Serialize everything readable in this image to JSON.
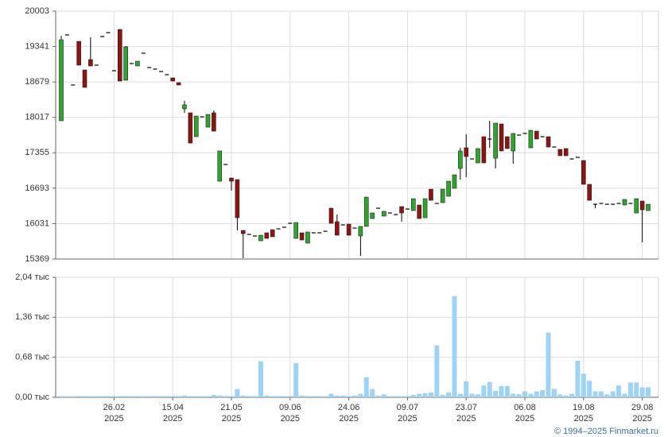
{
  "chart_data": [
    {
      "type": "candlestick",
      "up_color": "#2fa52f",
      "down_color": "#8e1414",
      "ylim": [
        15369,
        20003
      ],
      "yticks": [
        20003,
        19341,
        18679,
        18017,
        17355,
        16693,
        16031,
        15369
      ],
      "grid": true,
      "open": [
        17953,
        19558,
        18622,
        19438,
        18904,
        19097,
        18993,
        19528,
        19602,
        18889,
        19661,
        18711,
        19023,
        18978,
        19216,
        18948,
        18919,
        18874,
        18815,
        18755,
        18666,
        18176,
        18102,
        17656,
        18027,
        17834,
        18102,
        16824,
        17136,
        16884,
        16854,
        15904,
        15829,
        15800,
        15710,
        15859,
        15918,
        15933,
        15963,
        16037,
        15755,
        15859,
        15666,
        15859,
        15859,
        15888,
        16319,
        16066,
        16007,
        16022,
        15948,
        15800,
        15978,
        16126,
        16319,
        16171,
        16230,
        16200,
        16349,
        16304,
        16274,
        16379,
        16141,
        16675,
        16408,
        16423,
        16542,
        16691,
        17062,
        17448,
        17240,
        17166,
        17656,
        17612,
        17255,
        17894,
        17656,
        17389,
        17686,
        17716,
        17448,
        17760,
        17656,
        17656,
        17463,
        17419,
        17434,
        17240,
        17270,
        17211,
        16765,
        16393,
        16408,
        16393,
        16393,
        16408,
        16379,
        16408,
        16230,
        16453,
        16274
      ],
      "high": [
        19543,
        19558,
        18622,
        19438,
        18904,
        19513,
        18993,
        19528,
        19602,
        18889,
        19661,
        19350,
        19023,
        19067,
        19216,
        18948,
        18919,
        18874,
        18815,
        18755,
        18666,
        18325,
        18102,
        18042,
        18027,
        18072,
        18146,
        17389,
        17136,
        16884,
        16854,
        15904,
        15829,
        15800,
        15814,
        15859,
        15918,
        15933,
        15963,
        16037,
        16051,
        15859,
        15874,
        15859,
        15859,
        15888,
        16319,
        16200,
        16007,
        16022,
        15948,
        15978,
        16527,
        16230,
        16319,
        16260,
        16230,
        16200,
        16349,
        16304,
        16497,
        16379,
        16497,
        16675,
        16408,
        16675,
        16824,
        16943,
        17448,
        17700,
        17240,
        17434,
        17656,
        17953,
        17909,
        17894,
        17656,
        17716,
        17686,
        17716,
        17775,
        17760,
        17656,
        17656,
        17463,
        17419,
        17434,
        17240,
        17270,
        17211,
        16765,
        16393,
        16408,
        16393,
        16393,
        16408,
        16482,
        16408,
        16497,
        16453,
        16393
      ],
      "low": [
        17953,
        19558,
        18622,
        18993,
        18577,
        18978,
        18993,
        19528,
        19602,
        18889,
        18696,
        18711,
        19023,
        18978,
        19216,
        18948,
        18919,
        18874,
        18815,
        18696,
        18622,
        18102,
        17537,
        17656,
        18027,
        17834,
        17760,
        16824,
        17136,
        16646,
        15904,
        15384,
        15829,
        15800,
        15710,
        15755,
        15785,
        15933,
        15963,
        16037,
        15755,
        15725,
        15666,
        15859,
        15859,
        15888,
        16037,
        15814,
        16007,
        15814,
        15948,
        15428,
        15978,
        16126,
        16319,
        16171,
        16230,
        16200,
        16066,
        16304,
        16274,
        16126,
        16141,
        16467,
        16408,
        16423,
        16542,
        16691,
        16854,
        16900,
        17240,
        17166,
        17166,
        17448,
        17062,
        17389,
        17434,
        17150,
        17686,
        17716,
        17448,
        17612,
        17656,
        17463,
        17463,
        17300,
        17300,
        17240,
        17270,
        16765,
        16467,
        16319,
        16408,
        16393,
        16393,
        16408,
        16379,
        16408,
        16230,
        15681,
        16274
      ],
      "close": [
        19468,
        19558,
        18622,
        18993,
        18577,
        18978,
        18993,
        19528,
        19602,
        18889,
        18696,
        19335,
        19023,
        19067,
        19216,
        18948,
        18919,
        18874,
        18815,
        18696,
        18622,
        18250,
        17537,
        18042,
        18027,
        18072,
        17760,
        17389,
        17136,
        16824,
        16141,
        15844,
        15829,
        15800,
        15814,
        15755,
        15785,
        15933,
        15963,
        16037,
        16051,
        15725,
        15874,
        15859,
        15859,
        15888,
        16037,
        15814,
        16007,
        15814,
        15948,
        15978,
        16527,
        16230,
        16319,
        16260,
        16230,
        16200,
        16230,
        16304,
        16497,
        16126,
        16497,
        16467,
        16408,
        16675,
        16824,
        16943,
        17389,
        17285,
        17240,
        17434,
        17166,
        17612,
        17909,
        17389,
        17434,
        17716,
        17686,
        17716,
        17775,
        17612,
        17656,
        17463,
        17463,
        17300,
        17300,
        17240,
        17270,
        16765,
        16467,
        16393,
        16408,
        16393,
        16393,
        16408,
        16482,
        16408,
        16497,
        16289,
        16393
      ]
    },
    {
      "type": "bar",
      "color": "#9fd3f5",
      "ylim": [
        0,
        2.04
      ],
      "yticks": [
        {
          "value": 2.04,
          "label": "2,04 тыс"
        },
        {
          "value": 1.36,
          "label": "1,36 тыс"
        },
        {
          "value": 0.68,
          "label": "0,68 тыс"
        },
        {
          "value": 0,
          "label": "0,00 тыс"
        }
      ],
      "grid": true,
      "categories": [
        null,
        null,
        null,
        null,
        null,
        null,
        null,
        null,
        null,
        "26.02\n2025",
        null,
        null,
        null,
        null,
        null,
        null,
        null,
        null,
        null,
        "15.04\n2025",
        null,
        null,
        null,
        null,
        null,
        null,
        null,
        null,
        null,
        "21.05\n2025",
        null,
        null,
        null,
        null,
        null,
        null,
        null,
        null,
        null,
        "09.06\n2025",
        null,
        null,
        null,
        null,
        null,
        null,
        null,
        null,
        null,
        "24.06\n2025",
        null,
        null,
        null,
        null,
        null,
        null,
        null,
        null,
        null,
        "09.07\n2025",
        null,
        null,
        null,
        null,
        null,
        null,
        null,
        null,
        null,
        "23.07\n2025",
        null,
        null,
        null,
        null,
        null,
        null,
        null,
        null,
        null,
        "06.08\n2025",
        null,
        null,
        null,
        null,
        null,
        null,
        null,
        null,
        null,
        "19.08\n2025",
        null,
        null,
        null,
        null,
        null,
        null,
        null,
        null,
        null,
        "29.08\n2025",
        null
      ],
      "values": [
        0.02,
        0.02,
        0.02,
        0.02,
        0.02,
        0.02,
        0.02,
        0.02,
        0.02,
        0.02,
        0.02,
        0.02,
        0.02,
        0.02,
        0.02,
        0.02,
        0.02,
        0.02,
        0.02,
        0.02,
        0.02,
        0.03,
        0.02,
        0.02,
        0.02,
        0.02,
        0.04,
        0.03,
        0.02,
        0.02,
        0.14,
        0.03,
        0.02,
        0.02,
        0.61,
        0.03,
        0.02,
        0.02,
        0.02,
        0.02,
        0.58,
        0.03,
        0.02,
        0.02,
        0.02,
        0.02,
        0.06,
        0.03,
        0.03,
        0.02,
        0.03,
        0.06,
        0.34,
        0.14,
        0.03,
        0.05,
        0.02,
        0.02,
        0.02,
        0.02,
        0.04,
        0.06,
        0.07,
        0.08,
        0.88,
        0.04,
        0.08,
        1.72,
        0.06,
        0.27,
        0.06,
        0.05,
        0.2,
        0.26,
        0.11,
        0.19,
        0.19,
        0.06,
        0.05,
        0.1,
        0.06,
        0.1,
        0.12,
        1.1,
        0.14,
        0.05,
        0.03,
        0.06,
        0.62,
        0.4,
        0.28,
        0.1,
        0.1,
        0.05,
        0.1,
        0.2,
        0.06,
        0.25,
        0.25,
        0.17,
        0.17
      ]
    }
  ],
  "footer": "© 1994–2025 Finmarket.ru"
}
